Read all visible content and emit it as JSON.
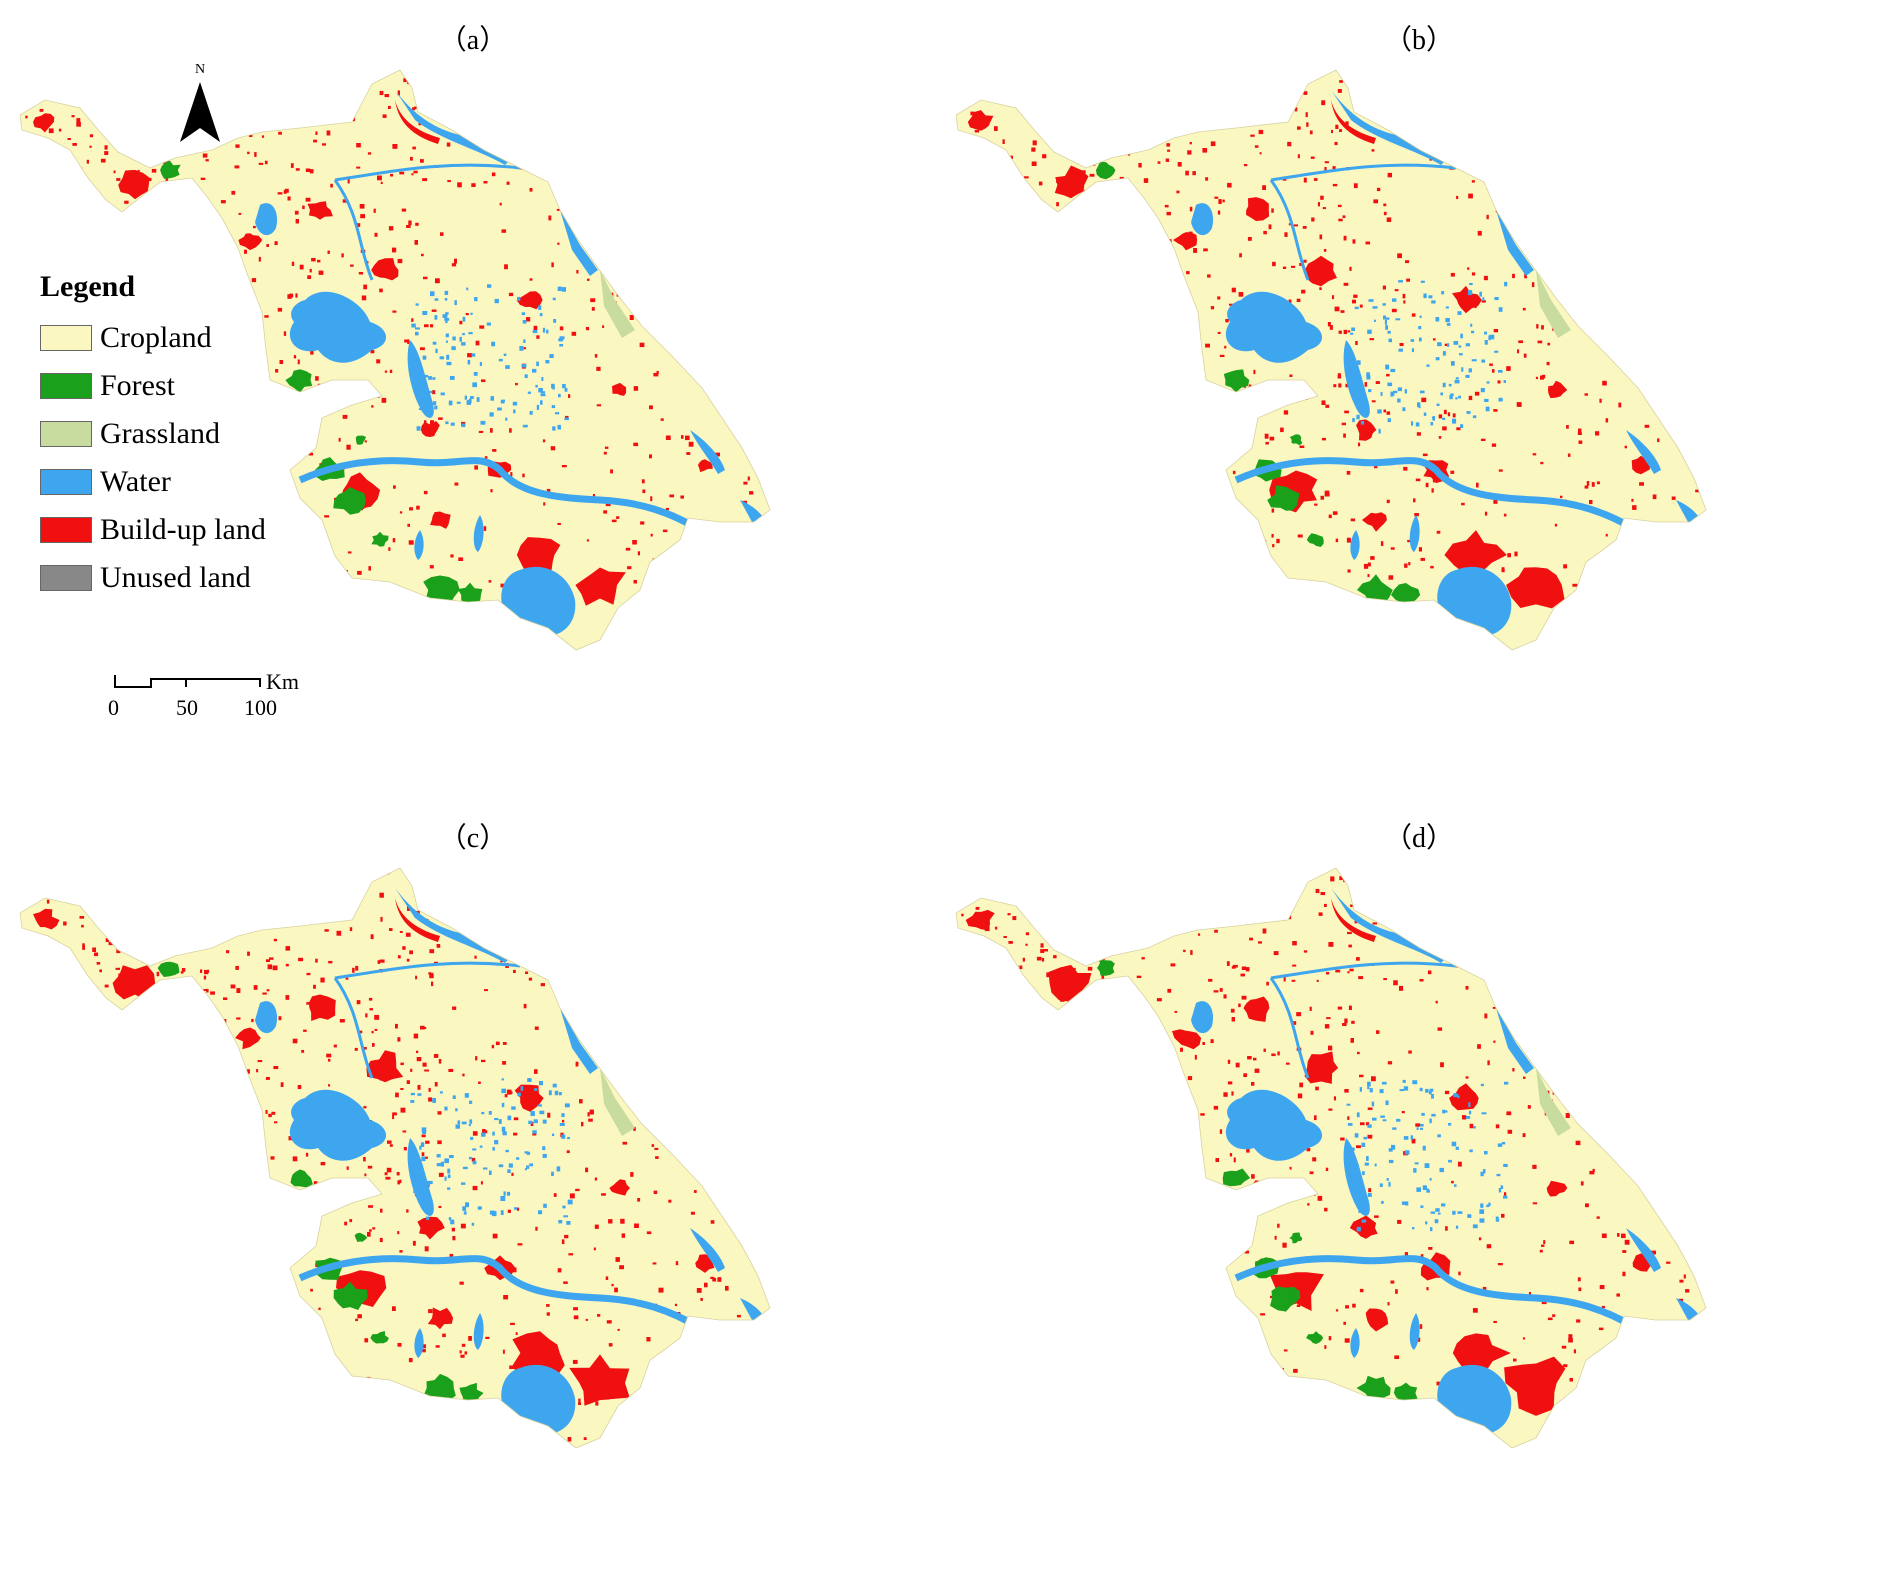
{
  "panels": [
    {
      "label": "（a）"
    },
    {
      "label": "（b）"
    },
    {
      "label": "（c）"
    },
    {
      "label": "（d）"
    }
  ],
  "legend": {
    "title": "Legend",
    "items": [
      {
        "label": "Cropland",
        "color": "#fbf7c0"
      },
      {
        "label": "Forest",
        "color": "#1aa01a"
      },
      {
        "label": "Grassland",
        "color": "#c8dca0"
      },
      {
        "label": "Water",
        "color": "#3ea6ef"
      },
      {
        "label": "Build-up land",
        "color": "#f01010"
      },
      {
        "label": "Unused land",
        "color": "#888888"
      }
    ]
  },
  "scale_bar": {
    "ticks": [
      "0",
      "50",
      "100"
    ],
    "unit": "Km"
  },
  "north_arrow": {
    "letter": "N"
  }
}
